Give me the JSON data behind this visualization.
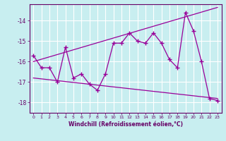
{
  "xlabel": "Windchill (Refroidissement éolien,°C)",
  "x": [
    0,
    1,
    2,
    3,
    4,
    5,
    6,
    7,
    8,
    9,
    10,
    11,
    12,
    13,
    14,
    15,
    16,
    17,
    18,
    19,
    20,
    21,
    22,
    23
  ],
  "y": [
    -15.7,
    -16.3,
    -16.3,
    -17.0,
    -15.3,
    -16.8,
    -16.6,
    -17.1,
    -17.4,
    -16.6,
    -15.1,
    -15.1,
    -14.6,
    -15.0,
    -15.1,
    -14.6,
    -15.1,
    -15.9,
    -16.3,
    -13.6,
    -14.5,
    -16.0,
    -17.8,
    -17.9
  ],
  "upper_line": [
    [
      -16.0,
      -13.7
    ],
    [
      0,
      20
    ]
  ],
  "lower_line": [
    [
      -16.8,
      -17.8
    ],
    [
      0,
      23
    ]
  ],
  "line_color": "#990099",
  "bg_color": "#c8eef0",
  "grid_color": "#ffffff",
  "axis_color": "#660066",
  "ylim": [
    -18.5,
    -13.2
  ],
  "xlim": [
    -0.5,
    23.5
  ],
  "yticks": [
    -18,
    -17,
    -16,
    -15,
    -14
  ],
  "xticks": [
    0,
    1,
    2,
    3,
    4,
    5,
    6,
    7,
    8,
    9,
    10,
    11,
    12,
    13,
    14,
    15,
    16,
    17,
    18,
    19,
    20,
    21,
    22,
    23
  ]
}
